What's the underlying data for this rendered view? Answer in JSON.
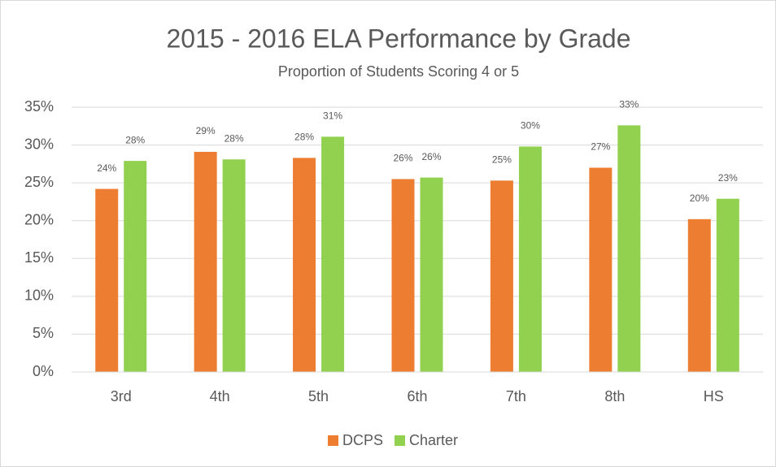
{
  "chart_data": {
    "type": "bar",
    "title": "2015 - 2016 ELA Performance by Grade",
    "subtitle": "Proportion of Students Scoring 4 or 5",
    "categories": [
      "3rd",
      "4th",
      "5th",
      "6th",
      "7th",
      "8th",
      "HS"
    ],
    "series": [
      {
        "name": "DCPS",
        "color": "#ed7d31",
        "values": [
          24.2,
          29.1,
          28.3,
          25.5,
          25.3,
          27.0,
          20.2
        ],
        "value_labels": [
          "24%",
          "29%",
          "28%",
          "26%",
          "25%",
          "27%",
          "20%"
        ]
      },
      {
        "name": "Charter",
        "color": "#92d050",
        "values": [
          27.9,
          28.1,
          31.1,
          25.7,
          29.8,
          32.6,
          22.9
        ],
        "value_labels": [
          "28%",
          "28%",
          "31%",
          "26%",
          "30%",
          "33%",
          "23%"
        ]
      }
    ],
    "ylim": [
      0,
      35
    ],
    "yticks": [
      {
        "value": 0,
        "label": "0%"
      },
      {
        "value": 5,
        "label": "5%"
      },
      {
        "value": 10,
        "label": "10%"
      },
      {
        "value": 15,
        "label": "15%"
      },
      {
        "value": 20,
        "label": "20%"
      },
      {
        "value": 25,
        "label": "25%"
      },
      {
        "value": 30,
        "label": "30%"
      },
      {
        "value": 35,
        "label": "35%"
      }
    ],
    "grid": true,
    "legend": "bottom"
  }
}
